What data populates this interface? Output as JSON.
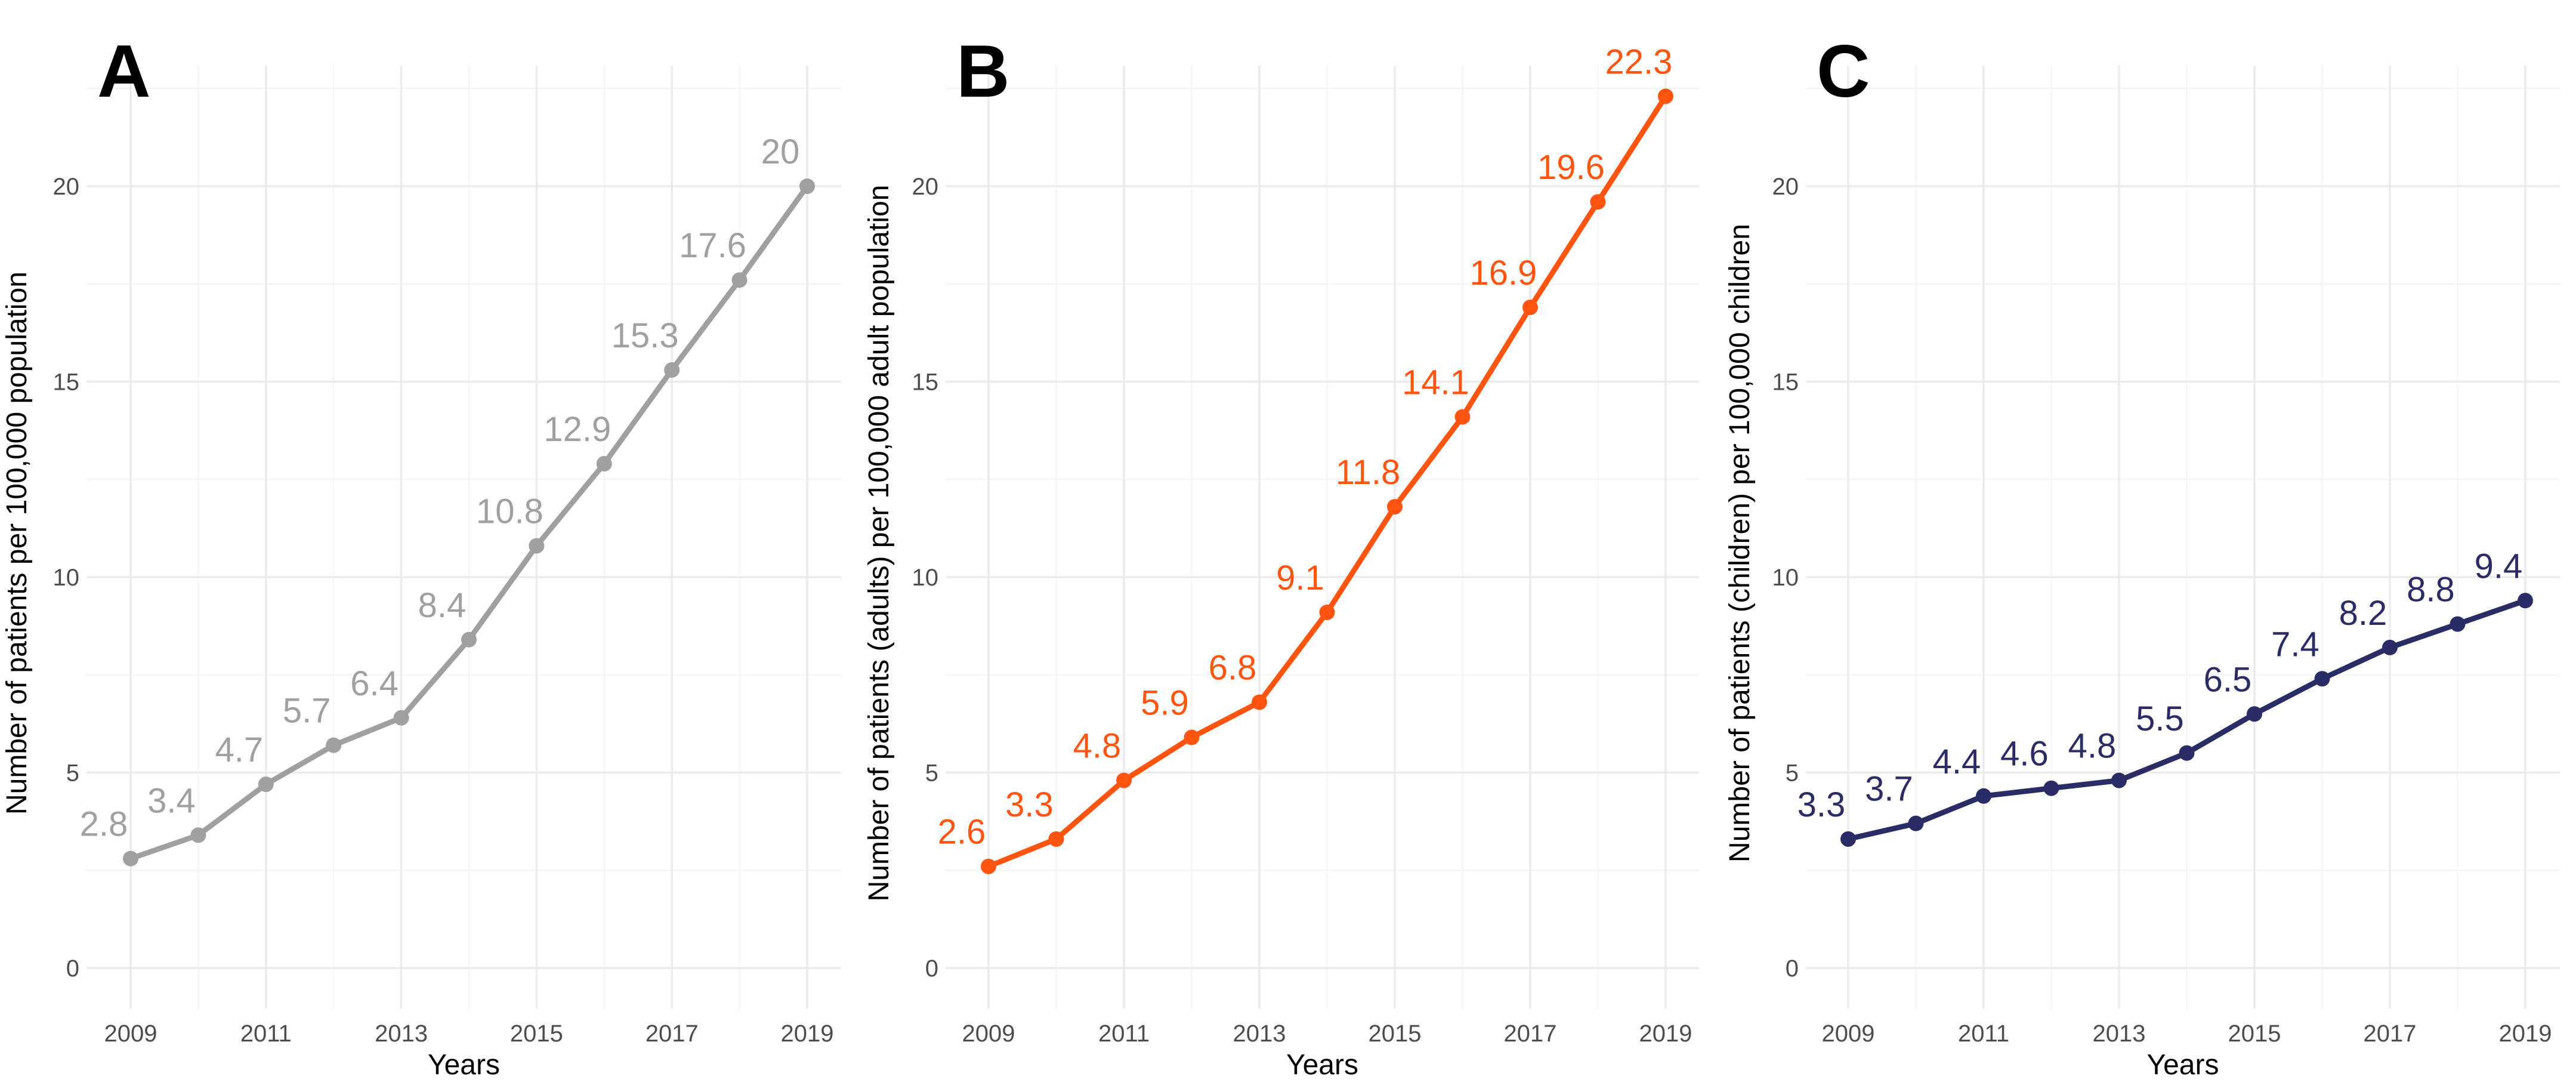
{
  "figure": {
    "panels": [
      "A",
      "B",
      "C"
    ]
  },
  "chart_data": [
    {
      "type": "line",
      "panel_label": "A",
      "title": "",
      "xlabel": "Years",
      "ylabel": "Number of patients per 100,000 population",
      "x": [
        2009,
        2010,
        2011,
        2012,
        2013,
        2014,
        2015,
        2016,
        2017,
        2018,
        2019
      ],
      "values": [
        2.8,
        3.4,
        4.7,
        5.7,
        6.4,
        8.4,
        10.8,
        12.9,
        15.3,
        17.6,
        20
      ],
      "labels": [
        "2.8",
        "3.4",
        "4.7",
        "5.7",
        "6.4",
        "8.4",
        "10.8",
        "12.9",
        "15.3",
        "17.6",
        "20"
      ],
      "xticks": [
        "2009",
        "2011",
        "2013",
        "2015",
        "2017",
        "2019"
      ],
      "yticks": [
        "0",
        "5",
        "10",
        "15",
        "20"
      ],
      "xlim": [
        2009,
        2019
      ],
      "ylim": [
        0,
        22.3
      ],
      "color": "#a0a0a0",
      "grid": true
    },
    {
      "type": "line",
      "panel_label": "B",
      "title": "",
      "xlabel": "Years",
      "ylabel": "Number of patients (adults) per 100,000 adult population",
      "x": [
        2009,
        2010,
        2011,
        2012,
        2013,
        2014,
        2015,
        2016,
        2017,
        2018,
        2019
      ],
      "values": [
        2.6,
        3.3,
        4.8,
        5.9,
        6.8,
        9.1,
        11.8,
        14.1,
        16.9,
        19.6,
        22.3
      ],
      "labels": [
        "2.6",
        "3.3",
        "4.8",
        "5.9",
        "6.8",
        "9.1",
        "11.8",
        "14.1",
        "16.9",
        "19.6",
        "22.3"
      ],
      "xticks": [
        "2009",
        "2011",
        "2013",
        "2015",
        "2017",
        "2019"
      ],
      "yticks": [
        "0",
        "5",
        "10",
        "15",
        "20"
      ],
      "xlim": [
        2009,
        2019
      ],
      "ylim": [
        0,
        22.3
      ],
      "color": "#ff5511",
      "grid": true
    },
    {
      "type": "line",
      "panel_label": "C",
      "title": "",
      "xlabel": "Years",
      "ylabel": "Number of patients (children) per 100,000 children",
      "x": [
        2009,
        2010,
        2011,
        2012,
        2013,
        2014,
        2015,
        2016,
        2017,
        2018,
        2019
      ],
      "values": [
        3.3,
        3.7,
        4.4,
        4.6,
        4.8,
        5.5,
        6.5,
        7.4,
        8.2,
        8.8,
        9.4
      ],
      "labels": [
        "3.3",
        "3.7",
        "4.4",
        "4.6",
        "4.8",
        "5.5",
        "6.5",
        "7.4",
        "8.2",
        "8.8",
        "9.4"
      ],
      "xticks": [
        "2009",
        "2011",
        "2013",
        "2015",
        "2017",
        "2019"
      ],
      "yticks": [
        "0",
        "5",
        "10",
        "15",
        "20"
      ],
      "xlim": [
        2009,
        2019
      ],
      "ylim": [
        0,
        22.3
      ],
      "color": "#2a2c66",
      "grid": true
    }
  ]
}
